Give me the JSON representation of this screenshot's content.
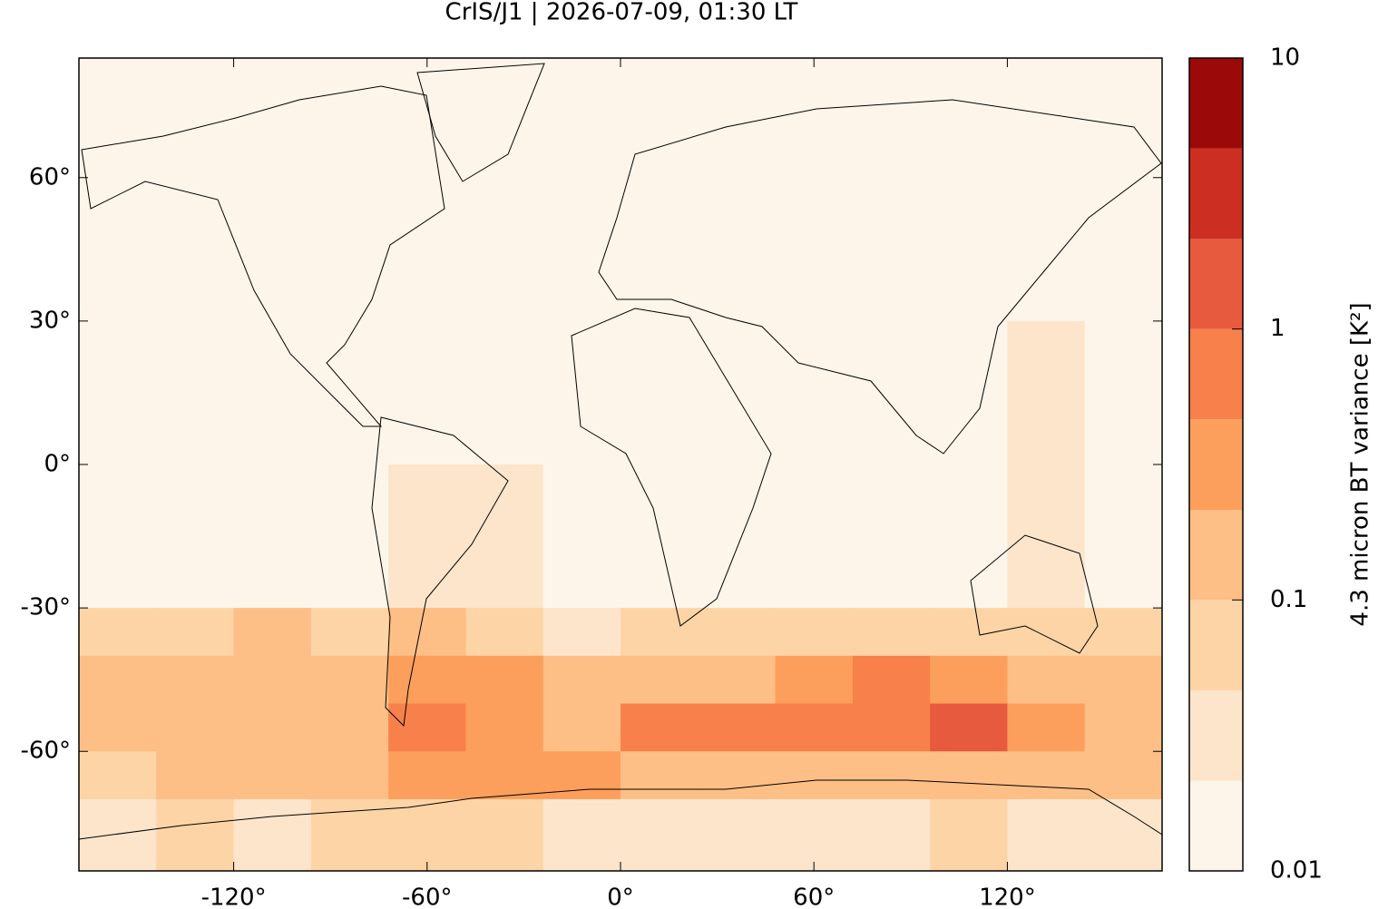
{
  "chart_data": {
    "type": "heatmap",
    "title": "CrIS/J1 | 2026-07-09, 01:30 LT",
    "xlim": [
      -168,
      168
    ],
    "ylim": [
      -85,
      85
    ],
    "xticks": [
      {
        "value": -120,
        "label": "-120°"
      },
      {
        "value": -60,
        "label": "-60°"
      },
      {
        "value": 0,
        "label": "0°"
      },
      {
        "value": 60,
        "label": "60°"
      },
      {
        "value": 120,
        "label": "120°"
      }
    ],
    "yticks": [
      {
        "value": -60,
        "label": "-60°"
      },
      {
        "value": -30,
        "label": "-30°"
      },
      {
        "value": 0,
        "label": "0°"
      },
      {
        "value": 30,
        "label": "30°"
      },
      {
        "value": 60,
        "label": "60°"
      }
    ],
    "field": {
      "lat_edges": [
        85,
        30,
        0,
        -30,
        -40,
        -50,
        -60,
        -70,
        -85
      ],
      "lon_edges": [
        -168,
        -144,
        -120,
        -96,
        -72,
        -48,
        -24,
        0,
        24,
        48,
        72,
        96,
        120,
        144,
        168
      ],
      "values": [
        [
          0.012,
          0.012,
          0.015,
          0.02,
          0.012,
          0.012,
          0.012,
          0.012,
          0.012,
          0.012,
          0.012,
          0.015,
          0.02,
          0.012
        ],
        [
          0.015,
          0.015,
          0.015,
          0.02,
          0.015,
          0.015,
          0.02,
          0.015,
          0.015,
          0.015,
          0.015,
          0.02,
          0.03,
          0.015
        ],
        [
          0.02,
          0.02,
          0.02,
          0.02,
          0.025,
          0.025,
          0.02,
          0.02,
          0.02,
          0.02,
          0.02,
          0.02,
          0.025,
          0.02
        ],
        [
          0.08,
          0.06,
          0.1,
          0.08,
          0.1,
          0.06,
          0.04,
          0.05,
          0.06,
          0.08,
          0.08,
          0.06,
          0.05,
          0.08
        ],
        [
          0.15,
          0.15,
          0.2,
          0.2,
          0.4,
          0.3,
          0.2,
          0.1,
          0.2,
          0.4,
          0.5,
          0.3,
          0.2,
          0.15
        ],
        [
          0.1,
          0.15,
          0.2,
          0.15,
          0.5,
          0.3,
          0.2,
          0.6,
          0.5,
          0.6,
          0.8,
          1.2,
          0.3,
          0.2
        ],
        [
          0.08,
          0.1,
          0.1,
          0.1,
          0.3,
          0.4,
          0.3,
          0.2,
          0.15,
          0.2,
          0.2,
          0.2,
          0.15,
          0.15
        ],
        [
          0.04,
          0.05,
          0.04,
          0.05,
          0.06,
          0.05,
          0.04,
          0.03,
          0.04,
          0.04,
          0.04,
          0.05,
          0.04,
          0.04
        ]
      ]
    },
    "colorbar": {
      "label": "4.3 micron BT variance [K²]",
      "log": true,
      "levels": [
        0.01,
        0.0215,
        0.0464,
        0.1,
        0.215,
        0.464,
        1,
        2.15,
        4.64,
        10
      ],
      "colors": [
        "#fef5ea",
        "#fde5cb",
        "#fdd4a6",
        "#fdbf86",
        "#fd9f5c",
        "#f8804a",
        "#e85a3e",
        "#cc2e22",
        "#9b0a09"
      ],
      "ticks": [
        0.01,
        0.1,
        1,
        10
      ]
    }
  }
}
